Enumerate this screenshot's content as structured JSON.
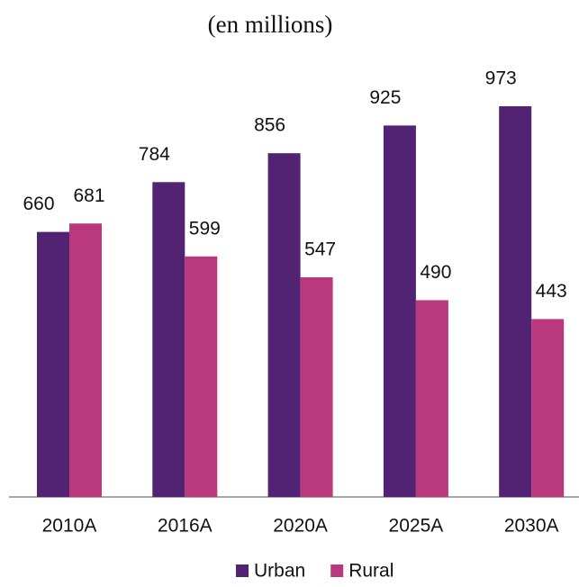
{
  "chart_data": {
    "type": "bar",
    "subtitle": "(en millions)",
    "categories": [
      "2010A",
      "2016A",
      "2020A",
      "2025A",
      "2030A"
    ],
    "series": [
      {
        "name": "Urban",
        "color": "#532373",
        "values": [
          660,
          784,
          856,
          925,
          973
        ]
      },
      {
        "name": "Rural",
        "color": "#b9387e",
        "values": [
          681,
          599,
          547,
          490,
          443
        ]
      }
    ]
  }
}
